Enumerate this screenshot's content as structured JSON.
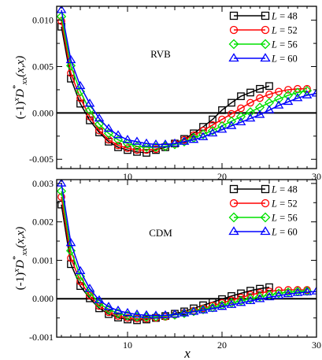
{
  "chart_data": [
    {
      "type": "line",
      "annotation": "RVB",
      "ylabel": {
        "prefix": "(-1)",
        "sup_x": "x",
        "D": "D",
        "sub": "xx",
        "star": "*",
        "suffix": "(x,x)"
      },
      "xlim": [
        2.5,
        30
      ],
      "ylim": [
        -0.006,
        0.0115
      ],
      "xticks": [
        10,
        20,
        30
      ],
      "yticks": [
        -0.005,
        0.0,
        0.005,
        0.01
      ],
      "ytick_labels": [
        "-0.005",
        "0.000",
        "0.005",
        "0.010"
      ],
      "legend_position": "top-right",
      "series": [
        {
          "name": "L = 48",
          "L": "48",
          "color": "#000000",
          "marker": "square",
          "start": 3,
          "step": 1,
          "values": [
            0.0093,
            0.0037,
            0.001,
            -0.0008,
            -0.0021,
            -0.0031,
            -0.0037,
            -0.004,
            -0.0042,
            -0.0043,
            -0.004,
            -0.0037,
            -0.0033,
            -0.0028,
            -0.0022,
            -0.0015,
            -0.0007,
            0.0003,
            0.0011,
            0.0018,
            0.0022,
            0.0026,
            0.0029
          ]
        },
        {
          "name": "L = 52",
          "L": "52",
          "color": "#ff0000",
          "marker": "circle",
          "start": 3,
          "step": 1,
          "values": [
            0.0099,
            0.0043,
            0.0016,
            -0.0004,
            -0.0019,
            -0.0029,
            -0.0035,
            -0.0038,
            -0.004,
            -0.004,
            -0.0039,
            -0.0036,
            -0.0033,
            -0.0029,
            -0.0024,
            -0.0019,
            -0.0013,
            -0.0007,
            -0.0001,
            0.0005,
            0.0011,
            0.0016,
            0.002,
            0.0023,
            0.0025,
            0.0026,
            0.0026
          ]
        },
        {
          "name": "L = 56",
          "L": "56",
          "color": "#00e000",
          "marker": "diamond",
          "start": 3,
          "step": 1,
          "values": [
            0.0104,
            0.0051,
            0.0023,
            0.0003,
            -0.0012,
            -0.0022,
            -0.0029,
            -0.0033,
            -0.0036,
            -0.0037,
            -0.0037,
            -0.0036,
            -0.0034,
            -0.0031,
            -0.0027,
            -0.0023,
            -0.0019,
            -0.0014,
            -0.0009,
            -0.0004,
            0.0001,
            0.0006,
            0.0011,
            0.0015,
            0.0019,
            0.0022,
            0.0024
          ]
        },
        {
          "name": "L = 60",
          "L": "60",
          "color": "#0000ff",
          "marker": "triangle",
          "start": 3,
          "step": 1,
          "values": [
            0.0111,
            0.0057,
            0.0029,
            0.001,
            -0.0006,
            -0.0017,
            -0.0024,
            -0.0029,
            -0.0031,
            -0.0033,
            -0.0034,
            -0.0034,
            -0.0033,
            -0.0031,
            -0.0029,
            -0.0026,
            -0.0022,
            -0.0018,
            -0.0014,
            -0.001,
            -0.0006,
            -0.0002,
            0.0003,
            0.0008,
            0.0012,
            0.0016,
            0.0019,
            0.0021,
            0.0023
          ]
        }
      ]
    },
    {
      "type": "line",
      "annotation": "CDM",
      "ylabel": {
        "prefix": "(-1)",
        "sup_x": "x",
        "D": "D",
        "sub": "xx",
        "star": "*",
        "suffix": "(x,x)"
      },
      "xlabel": "x",
      "xlim": [
        2.5,
        30
      ],
      "ylim": [
        -0.001,
        0.0031
      ],
      "xticks": [
        10,
        20,
        30
      ],
      "yticks": [
        -0.001,
        0.0,
        0.001,
        0.002,
        0.003
      ],
      "ytick_labels": [
        "-0.001",
        "0.000",
        "0.001",
        "0.002",
        "0.003"
      ],
      "legend_position": "top-right",
      "series": [
        {
          "name": "L = 48",
          "L": "48",
          "color": "#000000",
          "marker": "square",
          "start": 3,
          "step": 1,
          "values": [
            0.00245,
            0.0009,
            0.00033,
            1e-05,
            -0.00025,
            -0.0004,
            -0.00049,
            -0.00054,
            -0.00056,
            -0.00054,
            -0.0005,
            -0.00045,
            -0.00039,
            -0.00033,
            -0.00025,
            -0.00017,
            -9e-05,
            -1e-05,
            7e-05,
            0.00014,
            0.00021,
            0.00026,
            0.0003
          ]
        },
        {
          "name": "L = 52",
          "L": "52",
          "color": "#ff0000",
          "marker": "circle",
          "start": 3,
          "step": 1,
          "values": [
            0.00265,
            0.00106,
            0.00045,
            8e-05,
            -0.00019,
            -0.00035,
            -0.00045,
            -0.0005,
            -0.00052,
            -0.00052,
            -0.0005,
            -0.00047,
            -0.00042,
            -0.00037,
            -0.00031,
            -0.00025,
            -0.00018,
            -0.00011,
            -4e-05,
            3e-05,
            0.0001,
            0.00015,
            0.00019,
            0.00022,
            0.00023,
            0.00023,
            0.00023
          ]
        },
        {
          "name": "L = 56",
          "L": "56",
          "color": "#00e000",
          "marker": "diamond",
          "start": 3,
          "step": 1,
          "values": [
            0.0028,
            0.00125,
            0.00058,
            0.00016,
            -0.00012,
            -0.00028,
            -0.00038,
            -0.00044,
            -0.00047,
            -0.00048,
            -0.00047,
            -0.00045,
            -0.00042,
            -0.00038,
            -0.00033,
            -0.00028,
            -0.00023,
            -0.00017,
            -0.00011,
            -6e-05,
            0.0,
            5e-05,
            0.0001,
            0.00014,
            0.00017,
            0.00019,
            0.0002
          ]
        },
        {
          "name": "L = 60",
          "L": "60",
          "color": "#0000ff",
          "marker": "triangle",
          "start": 3,
          "step": 1,
          "values": [
            0.003,
            0.00145,
            0.00072,
            0.00026,
            -4e-05,
            -0.00021,
            -0.00031,
            -0.00037,
            -0.00041,
            -0.00043,
            -0.00044,
            -0.00043,
            -0.00041,
            -0.00038,
            -0.00034,
            -0.0003,
            -0.00026,
            -0.00021,
            -0.00016,
            -0.00011,
            -6e-05,
            -1e-05,
            4e-05,
            8e-05,
            0.00012,
            0.00015,
            0.00017,
            0.00019,
            0.0002
          ]
        }
      ]
    }
  ]
}
